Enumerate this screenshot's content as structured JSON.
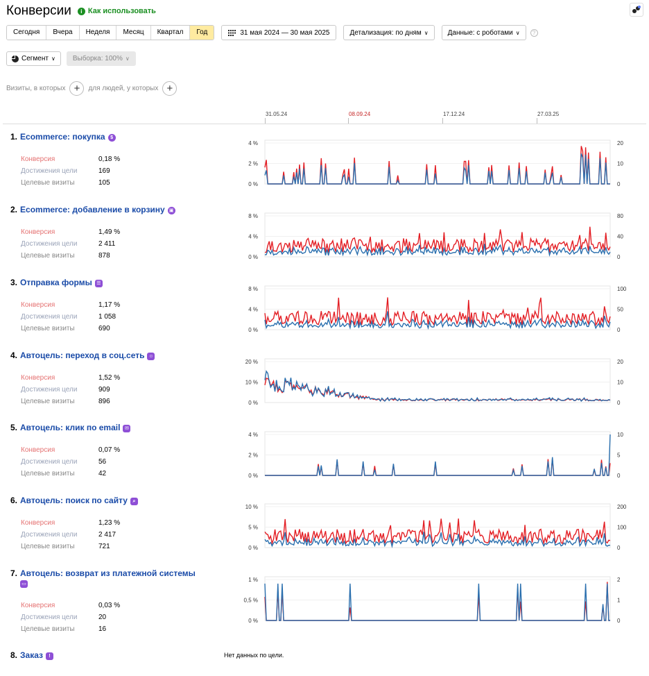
{
  "header": {
    "title": "Конверсии",
    "help_label": "Как использовать",
    "help_icon": "info-icon"
  },
  "toolbar": {
    "periods": [
      "Сегодня",
      "Вчера",
      "Неделя",
      "Месяц",
      "Квартал",
      "Год"
    ],
    "active_period": "Год",
    "date_range": "31 мая 2024 — 30 мая 2025",
    "detail_label": "Детализация: по дням",
    "data_label": "Данные: с роботами"
  },
  "segment": {
    "segment_label": "Сегмент",
    "sample_label": "Выборка: 100%"
  },
  "filters": {
    "visits_label": "Визиты, в которых",
    "people_label": "для людей, у которых"
  },
  "timeline": {
    "ticks": [
      "31.05.24",
      "08.09.24",
      "17.12.24",
      "27.03.25"
    ],
    "highlight_color": "#c62828"
  },
  "colors": {
    "conversion": "#e31e24",
    "visits": "#2a6fae",
    "accent": "#ffeba0",
    "link": "#1a4ba8",
    "badge": "#8e4fd6"
  },
  "metric_labels": {
    "conversion": "Конверсия",
    "achievements": "Достижения цели",
    "visits": "Целевые визиты"
  },
  "goals": [
    {
      "num": "1.",
      "name": "Ecommerce: покупка",
      "icon": "dollar-icon",
      "conversion": "0,18 %",
      "achievements": "169",
      "visits": "105",
      "chart_data": {
        "type": "line",
        "left_axis": [
          "4 %",
          "2 %",
          "0 %"
        ],
        "right_axis": [
          "20",
          "10",
          "0"
        ],
        "series": [
          {
            "name": "Конверсия",
            "color": "#e31e24"
          },
          {
            "name": "Целевые визиты",
            "color": "#2a6fae"
          }
        ]
      }
    },
    {
      "num": "2.",
      "name": "Ecommerce: добавление в корзину",
      "icon": "cube-icon",
      "conversion": "1,49 %",
      "achievements": "2 411",
      "visits": "878",
      "chart_data": {
        "type": "line",
        "left_axis": [
          "8 %",
          "4 %",
          "0 %"
        ],
        "right_axis": [
          "80",
          "40",
          "0"
        ]
      }
    },
    {
      "num": "3.",
      "name": "Отправка формы",
      "icon": "form-icon",
      "conversion": "1,17 %",
      "achievements": "1 058",
      "visits": "690",
      "chart_data": {
        "type": "line",
        "left_axis": [
          "8 %",
          "4 %",
          "0 %"
        ],
        "right_axis": [
          "100",
          "50",
          "0"
        ]
      }
    },
    {
      "num": "4.",
      "name": "Автоцель: переход в соц.сеть",
      "icon": "person-icon",
      "conversion": "1,52 %",
      "achievements": "909",
      "visits": "896",
      "chart_data": {
        "type": "line",
        "left_axis": [
          "20 %",
          "10 %",
          "0 %"
        ],
        "right_axis": [
          "20",
          "10",
          "0"
        ]
      }
    },
    {
      "num": "5.",
      "name": "Автоцель: клик по email",
      "icon": "mail-icon",
      "conversion": "0,07 %",
      "achievements": "56",
      "visits": "42",
      "chart_data": {
        "type": "line",
        "left_axis": [
          "4 %",
          "2 %",
          "0 %"
        ],
        "right_axis": [
          "10",
          "5",
          "0"
        ]
      }
    },
    {
      "num": "6.",
      "name": "Автоцель: поиск по сайту",
      "icon": "search-icon",
      "conversion": "1,23 %",
      "achievements": "2 417",
      "visits": "721",
      "chart_data": {
        "type": "line",
        "left_axis": [
          "10 %",
          "5 %",
          "0 %"
        ],
        "right_axis": [
          "200",
          "100",
          "0"
        ]
      }
    },
    {
      "num": "7.",
      "name": "Автоцель: возврат из платежной системы",
      "icon": "card-icon",
      "conversion": "0,03 %",
      "achievements": "20",
      "visits": "16",
      "chart_data": {
        "type": "line",
        "left_axis": [
          "1 %",
          "0,5 %",
          "0 %"
        ],
        "right_axis": [
          "2",
          "1",
          "0"
        ]
      }
    },
    {
      "num": "8.",
      "name": "Заказ",
      "icon": "exclamation-icon"
    }
  ],
  "no_data_text": "Нет данных по цели."
}
